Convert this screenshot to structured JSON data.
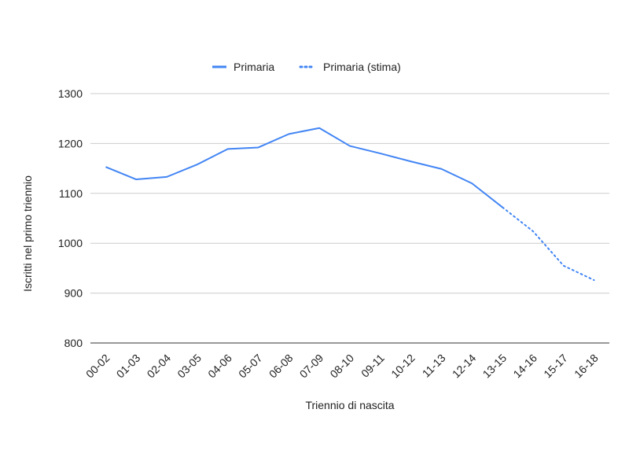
{
  "chart_data": {
    "type": "line",
    "xlabel": "Triennio di nascita",
    "ylabel": "Iscritti nel primo triennio",
    "ylim": [
      800,
      1300
    ],
    "yticks": [
      800,
      900,
      1000,
      1100,
      1200,
      1300
    ],
    "grid": true,
    "legend_position": "top",
    "categories": [
      "00-02",
      "01-03",
      "02-04",
      "03-05",
      "04-06",
      "05-07",
      "06-08",
      "07-09",
      "08-10",
      "09-11",
      "10-12",
      "11-13",
      "12-14",
      "13-15",
      "14-16",
      "15-17",
      "16-18"
    ],
    "series": [
      {
        "name": "Primaria",
        "style": "solid",
        "color": "#4285f4",
        "values": [
          1153,
          1128,
          1133,
          1158,
          1189,
          1192,
          1219,
          1231,
          1195,
          1180,
          1164,
          1149,
          1120,
          1072,
          null,
          null,
          null
        ]
      },
      {
        "name": "Primaria (stima)",
        "style": "dotted",
        "color": "#4285f4",
        "values": [
          null,
          null,
          null,
          null,
          null,
          null,
          null,
          null,
          null,
          null,
          null,
          null,
          null,
          1072,
          1024,
          955,
          926
        ]
      }
    ]
  }
}
